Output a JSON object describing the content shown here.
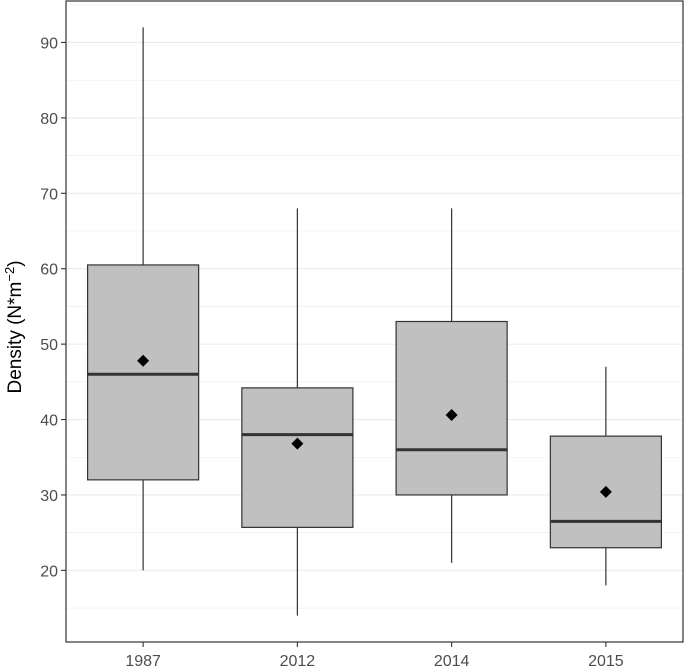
{
  "chart_data": {
    "type": "boxplot",
    "ylabel_main": "Density (N*m",
    "ylabel_sup": "−2",
    "ylabel_close": ")",
    "xlabel": "",
    "ylim": [
      10.5,
      95.5
    ],
    "yticks": [
      20,
      30,
      40,
      50,
      60,
      70,
      80,
      90
    ],
    "ytick_labels": [
      "20",
      "30",
      "40",
      "50",
      "60",
      "70",
      "80",
      "90"
    ],
    "grid": true,
    "categories": [
      "1987",
      "2012",
      "2014",
      "2015"
    ],
    "boxes": [
      {
        "category": "1987",
        "min": 20,
        "q1": 32,
        "median": 46,
        "q3": 60.5,
        "max": 92,
        "mean": 47.8
      },
      {
        "category": "2012",
        "min": 14,
        "q1": 25.7,
        "median": 38,
        "q3": 44.2,
        "max": 68,
        "mean": 36.8
      },
      {
        "category": "2014",
        "min": 21,
        "q1": 30,
        "median": 36,
        "q3": 53,
        "max": 68,
        "mean": 40.6
      },
      {
        "category": "2015",
        "min": 18,
        "q1": 23,
        "median": 26.5,
        "q3": 37.8,
        "max": 47,
        "mean": 30.4
      }
    ],
    "box_fill": "#c0c0c0",
    "box_stroke": "#333333",
    "mean_marker_color": "#000000",
    "panel_border": "#333333",
    "grid_color": "#ebebeb"
  }
}
